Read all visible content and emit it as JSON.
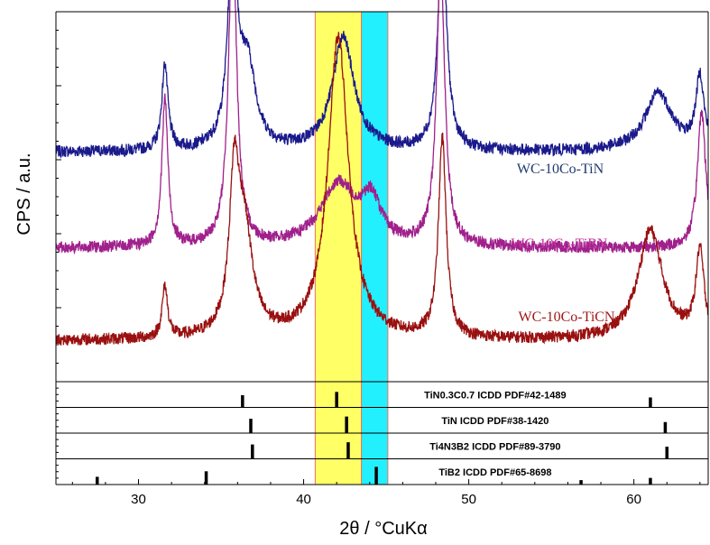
{
  "chart_data": {
    "type": "line",
    "xlabel": "2θ / °CuKα",
    "ylabel": "CPS / a.u.",
    "xlim": [
      25,
      64.5
    ],
    "xticks": [
      30,
      40,
      50,
      60
    ],
    "highlight_bands": [
      {
        "x0": 40.7,
        "x1": 43.5,
        "color": "#ffff66"
      },
      {
        "x0": 43.5,
        "x1": 45.1,
        "color": "#22f0ff"
      }
    ],
    "series": [
      {
        "name": "WC-10Co-TiN",
        "color": "#1a1a8c",
        "label_color": "#1f3a6e",
        "baseline": 0.63,
        "peaks": [
          [
            31.6,
            0.25,
            0.22
          ],
          [
            35.7,
            0.62,
            0.32
          ],
          [
            36.6,
            0.24,
            0.6
          ],
          [
            42.4,
            0.33,
            0.8
          ],
          [
            48.4,
            0.63,
            0.32
          ],
          [
            61.5,
            0.17,
            1.0
          ],
          [
            64.0,
            0.21,
            0.3
          ]
        ]
      },
      {
        "name": "WC-10Co-TiBN",
        "color": "#a0208c",
        "label_color": "#c0309a",
        "baseline": 0.35,
        "peaks": [
          [
            31.6,
            0.43,
            0.22
          ],
          [
            35.7,
            0.92,
            0.3
          ],
          [
            42.1,
            0.18,
            1.3
          ],
          [
            44.1,
            0.12,
            0.7
          ],
          [
            48.3,
            0.82,
            0.3
          ],
          [
            64.1,
            0.4,
            0.3
          ]
        ]
      },
      {
        "name": "WC-10Co-TiCN",
        "color": "#9a1010",
        "label_color": "#a01818",
        "baseline": 0.08,
        "peaks": [
          [
            31.6,
            0.15,
            0.2
          ],
          [
            35.8,
            0.42,
            0.35
          ],
          [
            36.4,
            0.3,
            0.6
          ],
          [
            42.1,
            0.88,
            0.75
          ],
          [
            48.4,
            0.58,
            0.28
          ],
          [
            61.0,
            0.32,
            0.9
          ],
          [
            64.0,
            0.25,
            0.3
          ]
        ]
      }
    ],
    "reference_patterns": [
      {
        "label": "TiN0.3C0.7 ICDD PDF#42-1489",
        "lines": [
          [
            36.3,
            0.55
          ],
          [
            42.0,
            0.7
          ],
          [
            61.0,
            0.45
          ]
        ]
      },
      {
        "label": "TiN ICDD PDF#38-1420",
        "lines": [
          [
            36.8,
            0.65
          ],
          [
            42.6,
            0.75
          ],
          [
            61.9,
            0.5
          ]
        ]
      },
      {
        "label": "Ti4N3B2 ICDD PDF#89-3790",
        "lines": [
          [
            36.9,
            0.65
          ],
          [
            42.7,
            0.75
          ],
          [
            62.0,
            0.55
          ]
        ]
      },
      {
        "label": "TiB2 ICDD PDF#65-8698",
        "lines": [
          [
            27.5,
            0.35
          ],
          [
            34.1,
            0.6
          ],
          [
            44.4,
            0.8
          ],
          [
            56.8,
            0.2
          ],
          [
            61.0,
            0.3
          ]
        ]
      }
    ]
  }
}
